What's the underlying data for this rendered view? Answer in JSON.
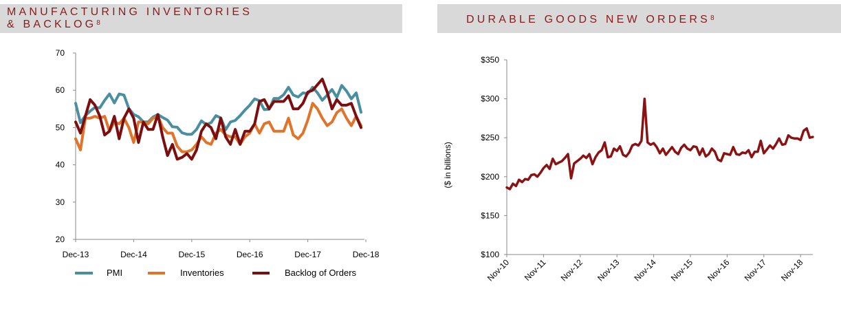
{
  "left_panel": {
    "title_line1": "MANUFACTURING INVENTORIES",
    "title_line2": "& BACKLOG",
    "footnote": "8"
  },
  "right_panel": {
    "title": "DURABLE GOODS NEW ORDERS",
    "footnote": "8"
  },
  "colors": {
    "banner_bg": "#d9d9d9",
    "title": "#8b1a1a",
    "pmi": "#4a8fa0",
    "inventories": "#e0742a",
    "backlog": "#7b0f0f",
    "right_line": "#8b1212"
  },
  "chart_data": [
    {
      "type": "line",
      "title": "MANUFACTURING INVENTORIES & BACKLOG",
      "xlabel": "",
      "ylabel": "",
      "ylim": [
        20,
        70
      ],
      "yticks": [
        20,
        30,
        40,
        50,
        60,
        70
      ],
      "x_tick_labels": [
        "Dec-13",
        "Dec-14",
        "Dec-15",
        "Dec-16",
        "Dec-17",
        "Dec-18"
      ],
      "x_start": "Dec-13",
      "x_end": "Dec-18",
      "frequency": "monthly",
      "grid": false,
      "legend": "bottom",
      "series": [
        {
          "name": "PMI",
          "values": [
            56.5,
            51.3,
            53.2,
            54.4,
            55.4,
            55.3,
            57.3,
            59.0,
            56.6,
            59.0,
            58.7,
            55.1,
            53.5,
            52.9,
            51.5,
            51.5,
            52.8,
            53.5,
            52.7,
            52.0,
            50.2,
            50.1,
            48.6,
            48.2,
            48.2,
            49.5,
            51.8,
            50.8,
            51.3,
            53.2,
            52.6,
            49.4,
            51.5,
            51.9,
            53.2,
            54.7,
            56.0,
            57.7,
            57.2,
            54.8,
            54.9,
            57.8,
            57.8,
            58.8,
            60.8,
            58.7,
            58.2,
            59.3,
            59.1,
            60.8,
            59.3,
            57.3,
            58.7,
            60.2,
            58.1,
            61.3,
            59.8,
            57.7,
            59.3,
            54.1
          ]
        },
        {
          "name": "Inventories",
          "values": [
            47.0,
            44.0,
            52.5,
            52.5,
            53.0,
            52.5,
            53.0,
            49.0,
            51.5,
            51.0,
            52.5,
            50.0,
            46.0,
            51.5,
            51.5,
            51.0,
            52.5,
            53.0,
            50.0,
            48.5,
            48.5,
            45.0,
            43.5,
            43.5,
            44.0,
            45.5,
            47.5,
            46.0,
            45.5,
            48.5,
            49.5,
            48.0,
            47.5,
            47.5,
            45.5,
            47.5,
            48.5,
            51.0,
            48.5,
            51.0,
            51.5,
            49.0,
            49.0,
            49.0,
            52.5,
            48.0,
            47.0,
            48.5,
            52.0,
            56.5,
            55.0,
            52.5,
            50.5,
            51.5,
            54.0,
            55.0,
            52.5,
            50.5,
            53.0,
            50.5
          ]
        },
        {
          "name": "Backlog of Orders",
          "values": [
            51.5,
            48.5,
            53.0,
            57.5,
            56.0,
            53.0,
            48.0,
            49.0,
            53.0,
            47.0,
            52.5,
            55.0,
            52.5,
            46.0,
            51.5,
            49.5,
            49.5,
            53.5,
            47.5,
            42.5,
            45.5,
            41.5,
            42.0,
            43.0,
            41.5,
            44.0,
            49.0,
            51.0,
            50.0,
            47.0,
            52.5,
            47.5,
            45.5,
            49.5,
            45.5,
            49.0,
            49.0,
            51.0,
            57.0,
            57.5,
            55.0,
            57.0,
            57.0,
            57.0,
            58.5,
            55.0,
            55.0,
            56.5,
            59.5,
            60.0,
            61.5,
            63.0,
            59.5,
            55.0,
            57.5,
            56.0,
            56.0,
            56.5,
            53.0,
            50.0
          ]
        }
      ]
    },
    {
      "type": "line",
      "title": "DURABLE GOODS NEW ORDERS",
      "xlabel": "",
      "ylabel": "($ in billions)",
      "ylim": [
        100,
        350
      ],
      "yticks": [
        100,
        150,
        200,
        250,
        300,
        350
      ],
      "ytick_labels": [
        "$100",
        "$150",
        "$200",
        "$250",
        "$300",
        "$350"
      ],
      "x_tick_labels": [
        "Nov-10",
        "Nov-11",
        "Nov-12",
        "Nov-13",
        "Nov-14",
        "Nov-15",
        "Nov-16",
        "Nov-17",
        "Nov-18"
      ],
      "x_start": "Nov-10",
      "x_end": "Nov-18",
      "frequency": "monthly",
      "grid": false,
      "legend": "none",
      "series": [
        {
          "name": "",
          "values": [
            186,
            184,
            191,
            188,
            196,
            193,
            197,
            196,
            202,
            203,
            200,
            205,
            211,
            215,
            210,
            223,
            216,
            218,
            220,
            224,
            229,
            198,
            217,
            220,
            223,
            227,
            224,
            229,
            216,
            225,
            231,
            234,
            244,
            225,
            226,
            236,
            233,
            239,
            228,
            226,
            231,
            240,
            242,
            240,
            246,
            300,
            244,
            241,
            243,
            238,
            230,
            236,
            228,
            233,
            238,
            232,
            229,
            237,
            241,
            236,
            234,
            239,
            238,
            228,
            236,
            226,
            229,
            236,
            232,
            222,
            220,
            230,
            229,
            228,
            238,
            229,
            228,
            231,
            230,
            234,
            225,
            232,
            232,
            246,
            230,
            235,
            240,
            236,
            242,
            249,
            241,
            242,
            253,
            250,
            249,
            249,
            247,
            259,
            262,
            250,
            251
          ]
        }
      ]
    }
  ]
}
